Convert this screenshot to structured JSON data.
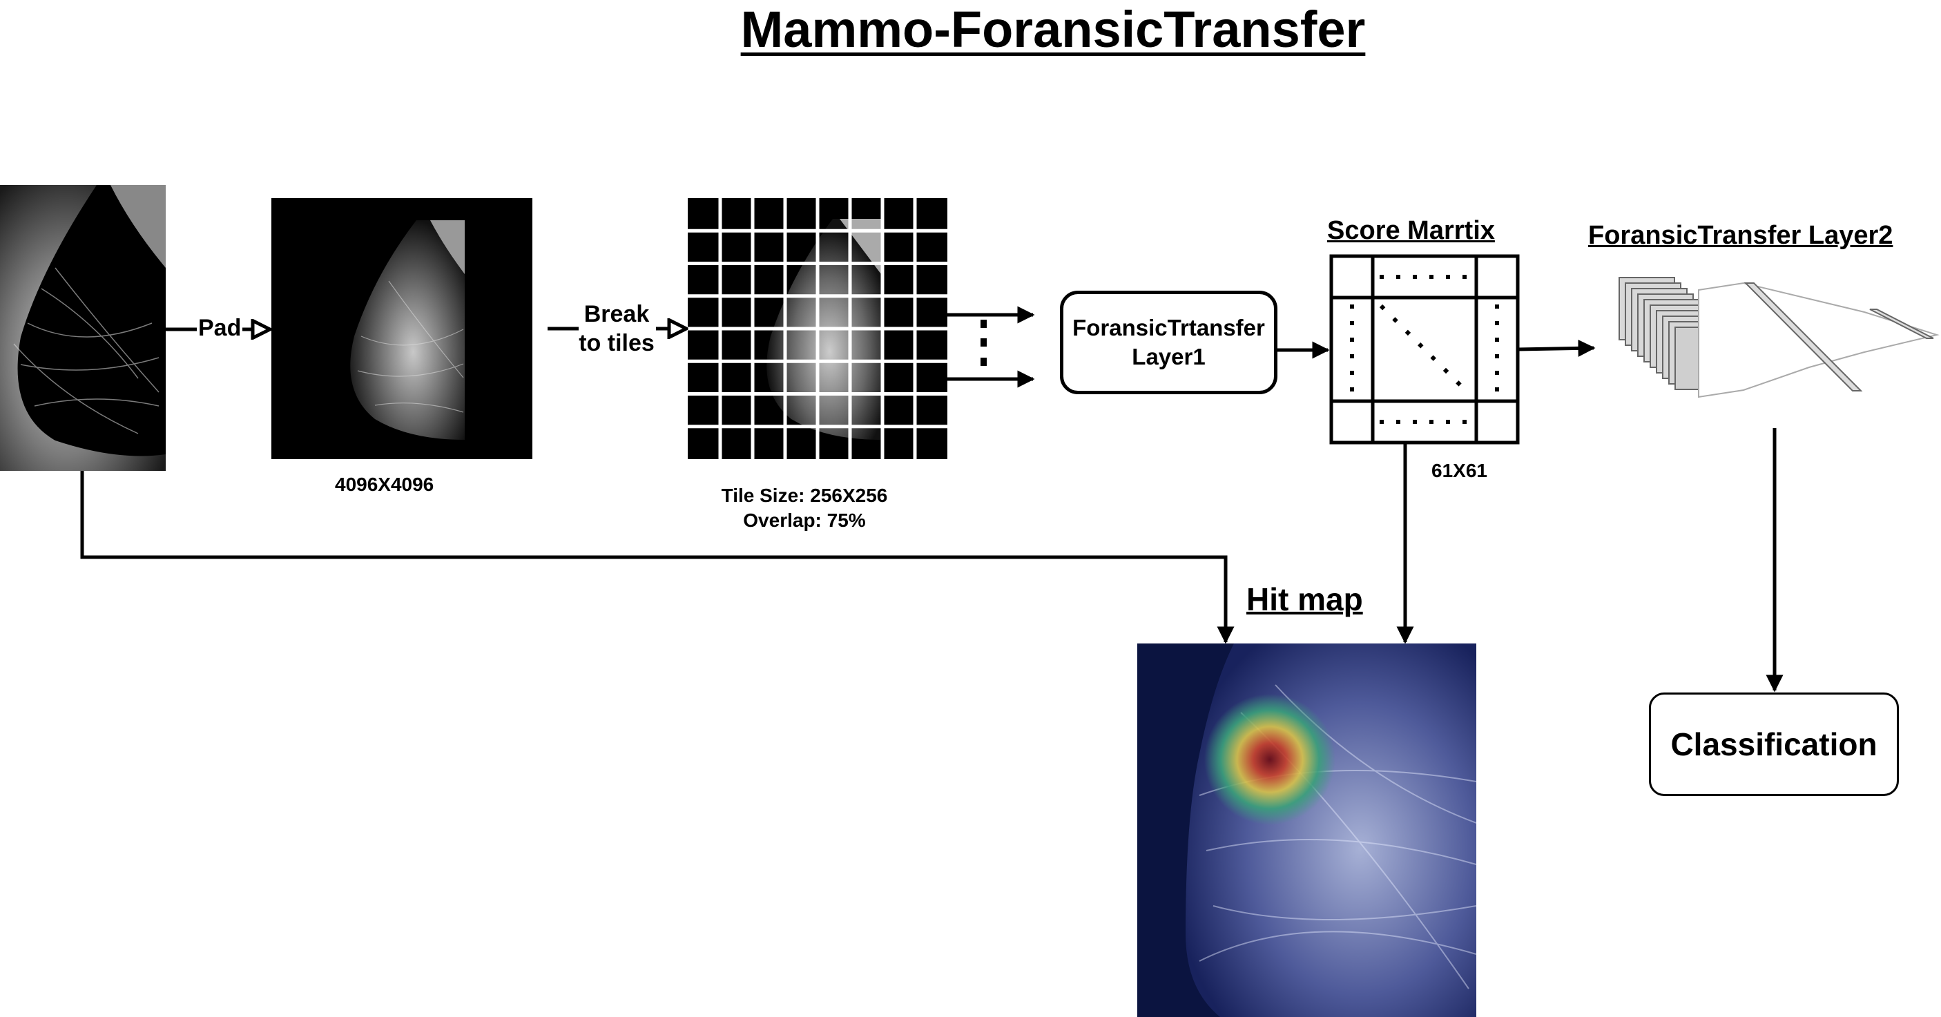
{
  "title": "Mammo-ForansicTransfer",
  "labels": {
    "pad": "Pad",
    "break_line1": "Break",
    "break_line2": "to tiles",
    "padded_size": "4096X4096",
    "tile_size": "Tile Size: 256X256",
    "overlap": "Overlap: 75%",
    "score_matrix_title": "Score Marrtix",
    "score_matrix_size": "61X61",
    "layer2_title": "ForansicTransfer Layer2",
    "hit_map_title": "Hit map"
  },
  "boxes": {
    "layer1_line1": "ForansicTrtansfer",
    "layer1_line2": "Layer1",
    "classification": "Classification"
  },
  "colors": {
    "line": "#000000",
    "box_border": "#000000",
    "heatmap_background": "#0b1440"
  },
  "tiles": {
    "rows": 8,
    "cols": 8
  }
}
